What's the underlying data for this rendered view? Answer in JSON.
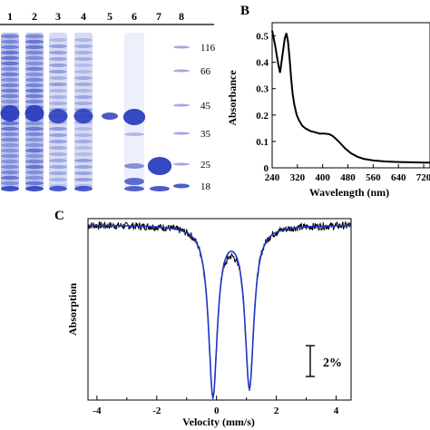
{
  "panel_a": {
    "lane_labels": [
      "1",
      "2",
      "3",
      "4",
      "5",
      "6",
      "7",
      "8"
    ],
    "mw_markers": [
      "116",
      "66",
      "45",
      "35",
      "25",
      "18"
    ],
    "gel_colors": {
      "background": "#ffffff",
      "band": "#2b3fbf",
      "smear": "#6a7ad6"
    }
  },
  "panel_b": {
    "label": "B",
    "chart_data": {
      "type": "line",
      "xlabel": "Wavelength (nm)",
      "ylabel": "Absorbance",
      "xlim": [
        240,
        740
      ],
      "ylim": [
        0,
        0.55
      ],
      "x_ticks": [
        "240",
        "320",
        "400",
        "480",
        "560",
        "640",
        "720"
      ],
      "y_ticks": [
        "0",
        "0.1",
        "0.2",
        "0.3",
        "0.4",
        "0.5"
      ],
      "series": [
        {
          "color": "#000000",
          "x": [
            240,
            250,
            258,
            265,
            272,
            280,
            285,
            290,
            295,
            300,
            305,
            310,
            318,
            325,
            335,
            345,
            360,
            375,
            390,
            405,
            420,
            430,
            440,
            455,
            470,
            490,
            510,
            530,
            560,
            600,
            640,
            680,
            720,
            740
          ],
          "y": [
            0.52,
            0.46,
            0.4,
            0.36,
            0.42,
            0.49,
            0.51,
            0.48,
            0.42,
            0.34,
            0.28,
            0.24,
            0.2,
            0.18,
            0.16,
            0.15,
            0.14,
            0.135,
            0.13,
            0.13,
            0.128,
            0.122,
            0.112,
            0.095,
            0.075,
            0.055,
            0.042,
            0.034,
            0.028,
            0.024,
            0.022,
            0.021,
            0.02,
            0.02
          ]
        }
      ]
    }
  },
  "panel_c": {
    "label": "C",
    "scale_bar_label": "2%",
    "chart_data": {
      "type": "line",
      "xlabel": "Velocity (mm/s)",
      "ylabel": "Absorption",
      "xlim": [
        -4.3,
        4.5
      ],
      "ylim": [
        0.86,
        1.005
      ],
      "x_ticks": [
        "-4",
        "-2",
        "0",
        "2",
        "4"
      ],
      "series": [
        {
          "color": "#000000",
          "style": "data"
        },
        {
          "color": "#2035c9",
          "style": "fit"
        }
      ],
      "fit_parameters": {
        "baseline": 1.0,
        "peaks": [
          {
            "center": -0.12,
            "depth": 0.135,
            "hwhm": 0.18
          },
          {
            "center": 1.1,
            "depth": 0.128,
            "hwhm": 0.18
          }
        ]
      }
    }
  }
}
